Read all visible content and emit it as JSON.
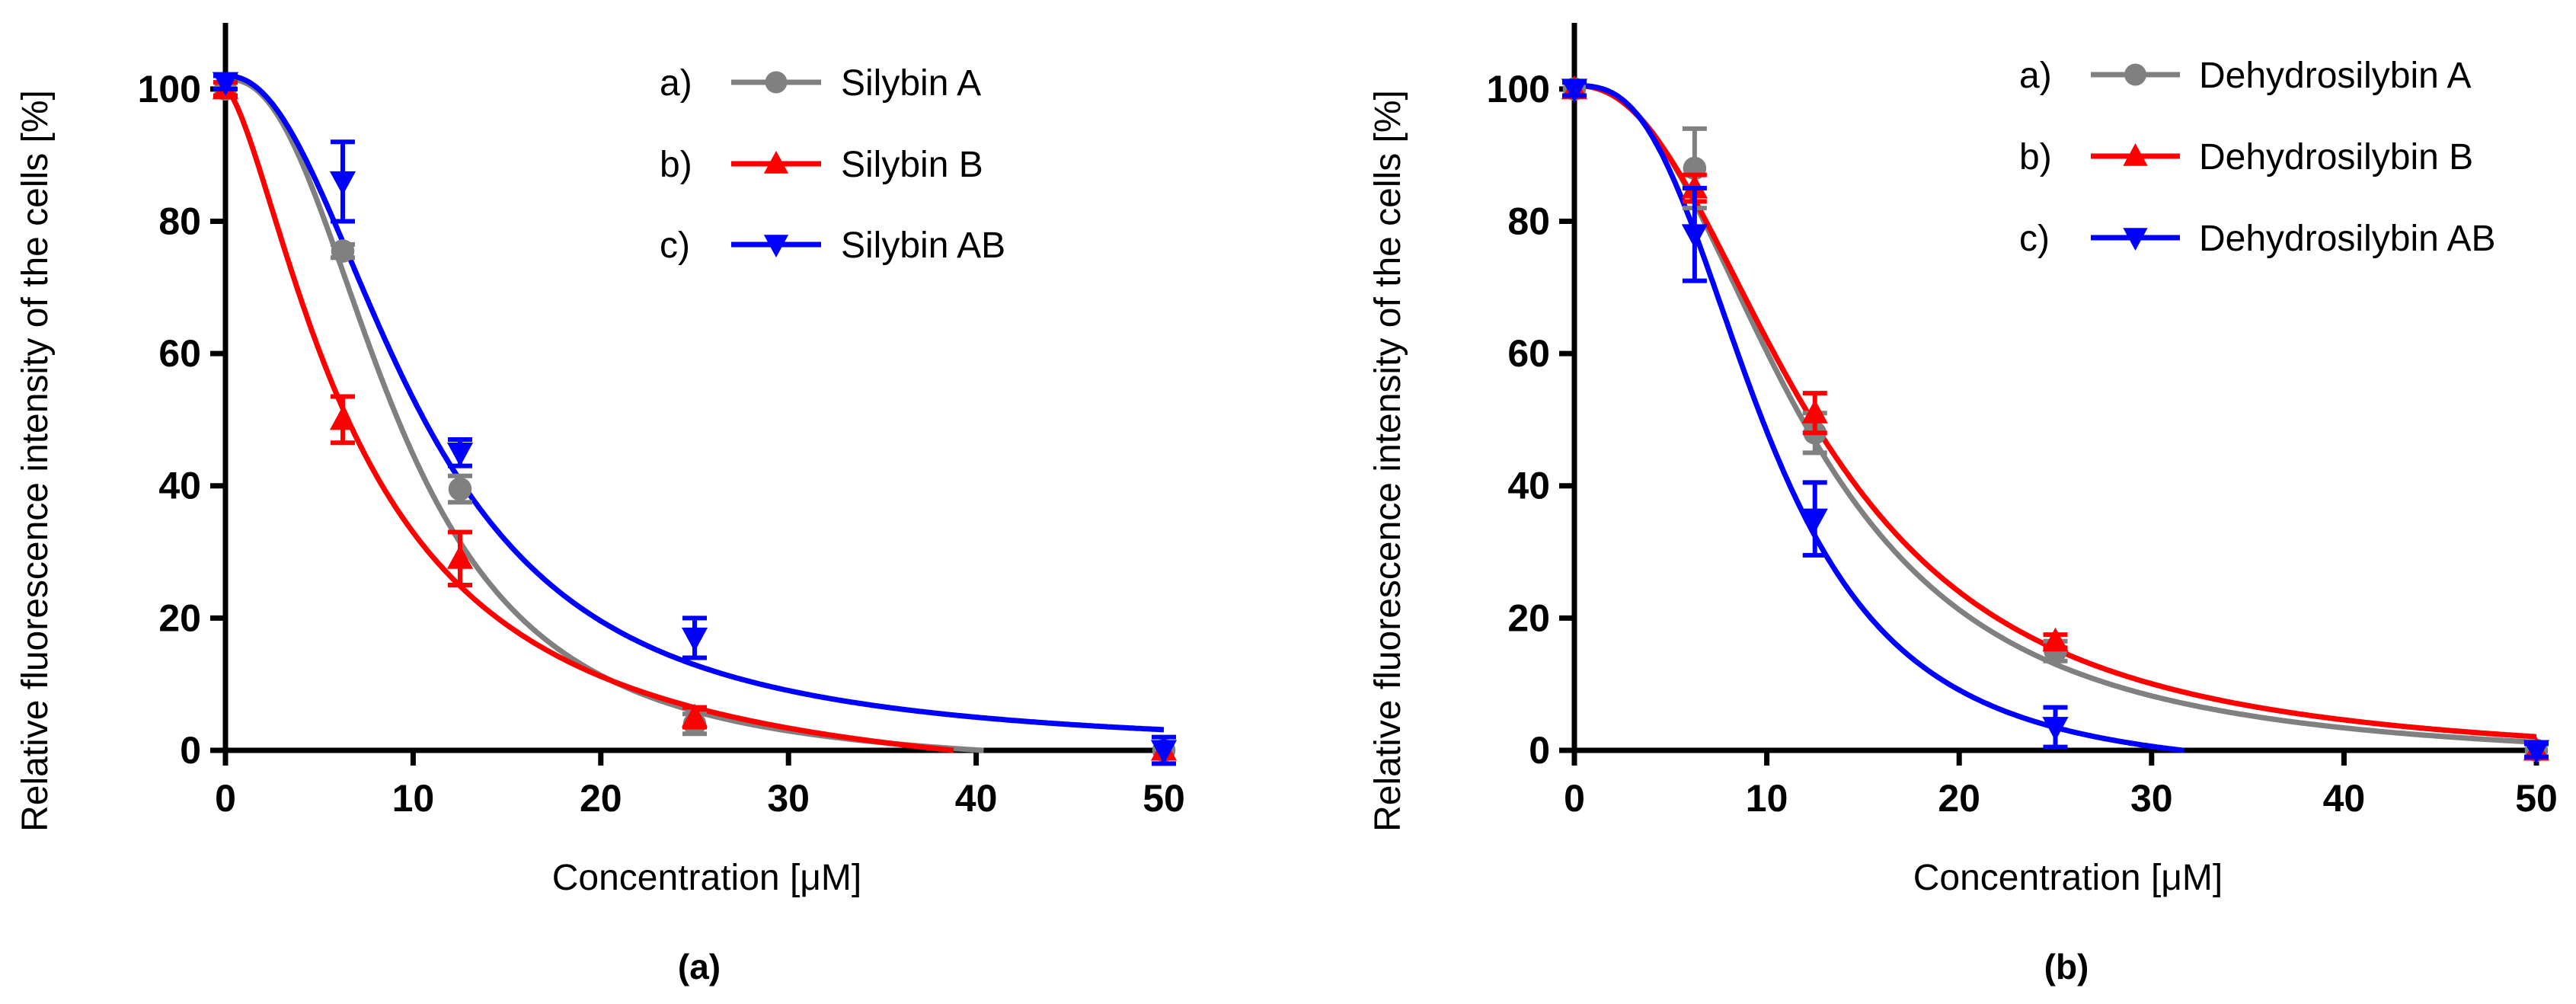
{
  "chart_data": [
    {
      "type": "line",
      "panel_label": "(a)",
      "xlabel": "Concentration [μM]",
      "ylabel": "Relative fluorescence intensity of the cells [%]",
      "xlim": [
        0,
        50
      ],
      "ylim": [
        0,
        110
      ],
      "xticks": [
        0,
        10,
        20,
        30,
        40,
        50
      ],
      "yticks": [
        0,
        20,
        40,
        60,
        80,
        100
      ],
      "legend_position": "top-right",
      "series": [
        {
          "prefix": "a)",
          "name": "Silybin A",
          "color": "#808080",
          "marker": "circle",
          "x": [
            0,
            6.25,
            12.5,
            25,
            50
          ],
          "y": [
            100,
            75.5,
            39.5,
            4,
            0
          ],
          "err": [
            1,
            1,
            2,
            1.5,
            0
          ],
          "fit": {
            "type": "4pl",
            "top": 101.5,
            "bottom": -3,
            "ec50": 9.3,
            "hill": 2.4
          }
        },
        {
          "prefix": "b)",
          "name": "Silybin B",
          "color": "#ff0000",
          "marker": "triangle-up",
          "x": [
            0,
            6.25,
            12.5,
            25,
            50
          ],
          "y": [
            100,
            50,
            29,
            5,
            0
          ],
          "err": [
            1,
            3.5,
            4,
            1.5,
            0
          ],
          "fit": {
            "type": "4pl",
            "top": 100,
            "bottom": -8,
            "ec50": 7.2,
            "hill": 1.5
          }
        },
        {
          "prefix": "c)",
          "name": "Silybin AB",
          "color": "#0000ff",
          "marker": "triangle-down",
          "x": [
            0,
            6.25,
            12.5,
            25,
            50
          ],
          "y": [
            101,
            86,
            45,
            17,
            0
          ],
          "err": [
            1,
            6,
            2,
            3,
            2
          ],
          "fit": {
            "type": "4pl",
            "top": 102,
            "bottom": 0,
            "ec50": 10.4,
            "hill": 2.2
          }
        }
      ]
    },
    {
      "type": "line",
      "panel_label": "(b)",
      "xlabel": "Concentration [μM]",
      "ylabel": "Relative fluorescence intensity of the cells [%]",
      "xlim": [
        0,
        50
      ],
      "ylim": [
        0,
        110
      ],
      "xticks": [
        0,
        10,
        20,
        30,
        40,
        50
      ],
      "yticks": [
        0,
        20,
        40,
        60,
        80,
        100
      ],
      "legend_position": "top-right",
      "series": [
        {
          "prefix": "a)",
          "name": "Dehydrosilybin A",
          "color": "#808080",
          "marker": "circle",
          "x": [
            0,
            6.25,
            12.5,
            25,
            50
          ],
          "y": [
            100,
            88,
            48,
            15,
            0
          ],
          "err": [
            1,
            6,
            3,
            1.5,
            1
          ],
          "fit": {
            "type": "4pl",
            "top": 100.5,
            "bottom": -2,
            "ec50": 12,
            "hill": 2.4
          }
        },
        {
          "prefix": "b)",
          "name": "Dehydrosilybin B",
          "color": "#ff0000",
          "marker": "triangle-up",
          "x": [
            0,
            6.25,
            12.5,
            25,
            50
          ],
          "y": [
            100,
            85,
            51,
            16.5,
            0
          ],
          "err": [
            1,
            2,
            3,
            1,
            0
          ],
          "fit": {
            "type": "4pl",
            "top": 100.5,
            "bottom": -2,
            "ec50": 12.5,
            "hill": 2.3
          }
        },
        {
          "prefix": "c)",
          "name": "Dehydrosilybin AB",
          "color": "#0000ff",
          "marker": "triangle-down",
          "x": [
            0,
            6.25,
            12.5,
            25,
            50
          ],
          "y": [
            100,
            78,
            35,
            3.5,
            0
          ],
          "err": [
            1,
            7,
            5.5,
            3,
            1
          ],
          "fit": {
            "type": "4pl",
            "top": 100.5,
            "bottom": -4,
            "ec50": 10,
            "hill": 2.8
          }
        }
      ]
    }
  ]
}
